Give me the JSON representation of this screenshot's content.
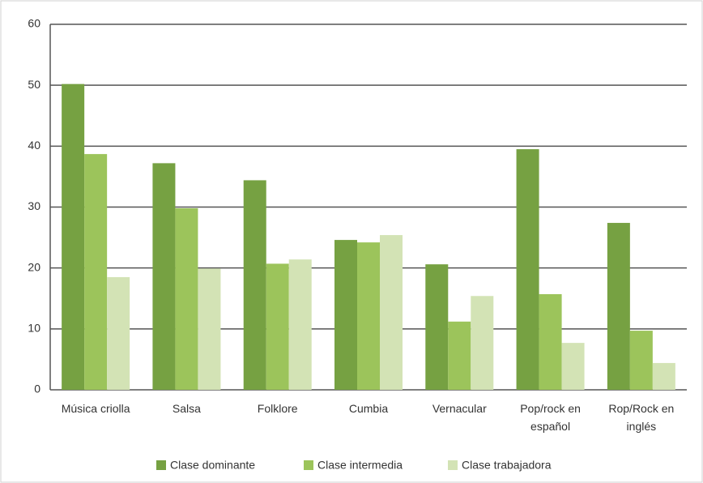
{
  "chart_data": {
    "type": "bar",
    "categories": [
      "Música criolla",
      "Salsa",
      "Folklore",
      "Cumbia",
      "Vernacular",
      "Pop/rock en español",
      "Rop/Rock en inglés"
    ],
    "series": [
      {
        "name": "Clase dominante",
        "color": "#76a142",
        "values": [
          50.2,
          37.2,
          34.4,
          24.6,
          20.6,
          39.5,
          27.4
        ]
      },
      {
        "name": "Clase intermedia",
        "color": "#9cc45b",
        "values": [
          38.7,
          29.8,
          20.7,
          24.2,
          11.2,
          15.7,
          9.7
        ]
      },
      {
        "name": "Clase trabajadora",
        "color": "#d3e3b5",
        "values": [
          18.5,
          19.9,
          21.4,
          25.4,
          15.4,
          7.7,
          4.4
        ]
      }
    ],
    "ylim": [
      0,
      60
    ],
    "yticks": [
      0,
      10,
      20,
      30,
      40,
      50,
      60
    ],
    "grid": true,
    "legend": "bottom"
  }
}
